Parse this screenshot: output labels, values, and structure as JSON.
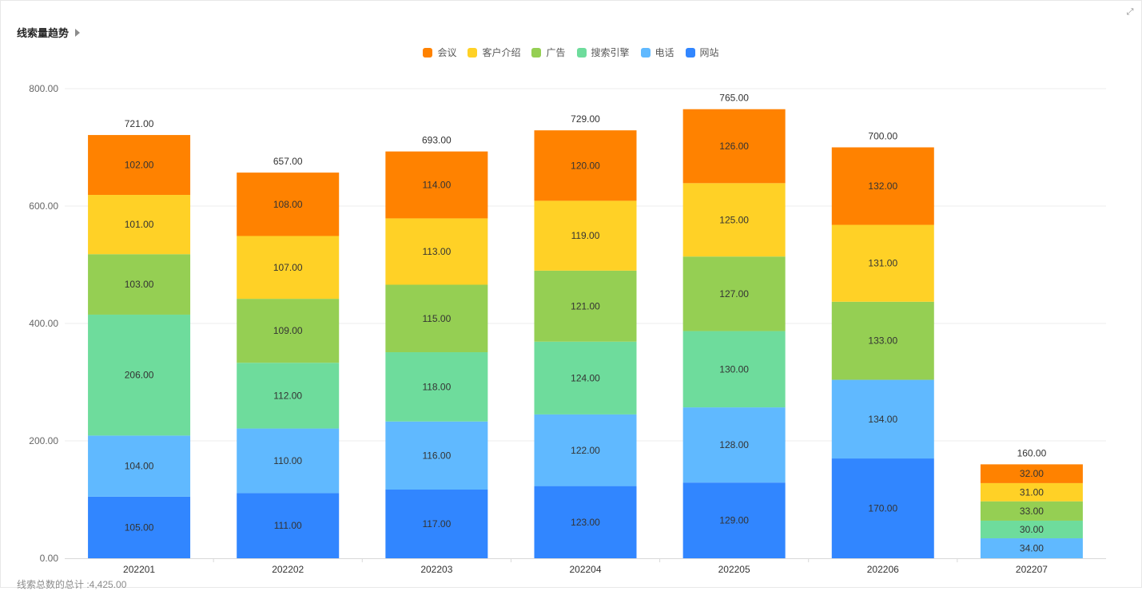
{
  "panel": {
    "title": "线索量趋势",
    "footer": "线索总数的总计 :4,425.00"
  },
  "colors": {
    "会议": "#FF8200",
    "客户介绍": "#FFD126",
    "广告": "#95CF53",
    "搜索引擎": "#6EDC9C",
    "电话": "#60B9FF",
    "网站": "#3186FF",
    "axis": "#e6e6e6",
    "grid": "#ececec",
    "tick_text": "#666666",
    "label_text": "#333333"
  },
  "legend": {
    "items": [
      "会议",
      "客户介绍",
      "广告",
      "搜索引擎",
      "电话",
      "网站"
    ]
  },
  "chart_data": {
    "type": "bar",
    "stacked": true,
    "categories": [
      "202201",
      "202202",
      "202203",
      "202204",
      "202205",
      "202206",
      "202207"
    ],
    "series": [
      {
        "name": "网站",
        "values": [
          105,
          111,
          117,
          123,
          129,
          170,
          0
        ]
      },
      {
        "name": "电话",
        "values": [
          104,
          110,
          116,
          122,
          128,
          134,
          34
        ]
      },
      {
        "name": "搜索引擎",
        "values": [
          206,
          112,
          118,
          124,
          130,
          0,
          30
        ]
      },
      {
        "name": "广告",
        "values": [
          103,
          109,
          115,
          121,
          127,
          133,
          33
        ]
      },
      {
        "name": "客户介绍",
        "values": [
          101,
          107,
          113,
          119,
          125,
          131,
          31
        ]
      },
      {
        "name": "会议",
        "values": [
          102,
          108,
          114,
          120,
          126,
          132,
          32
        ]
      }
    ],
    "totals": [
      721,
      657,
      693,
      729,
      765,
      700,
      160
    ],
    "yticks": [
      0,
      200,
      400,
      600,
      800
    ],
    "ylim": [
      0,
      800
    ],
    "grid": true,
    "legend_position": "top-center"
  }
}
